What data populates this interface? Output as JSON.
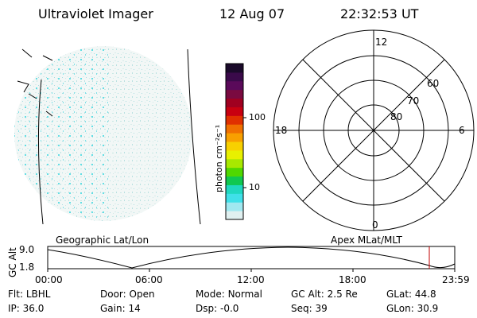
{
  "header": {
    "instrument": "Ultraviolet Imager",
    "date": "12 Aug 07",
    "time": "22:32:53 UT"
  },
  "colorbar": {
    "unit_label": "photon cm⁻²s⁻¹",
    "ticks": [
      "100",
      "10"
    ],
    "colors": [
      "#1a0a2a",
      "#3a0a4a",
      "#5a0a5a",
      "#7a0a40",
      "#a00020",
      "#c80010",
      "#e03000",
      "#f07000",
      "#f8a000",
      "#f8d000",
      "#e8f000",
      "#a8e800",
      "#50d800",
      "#10c850",
      "#20d8c0",
      "#40e0e8",
      "#a0e8f0",
      "#e0f0f0"
    ]
  },
  "polar": {
    "mlt_labels": {
      "top": "12",
      "bottom": "0",
      "left": "18",
      "right": "6"
    },
    "lat_labels": [
      "60",
      "70",
      "80"
    ]
  },
  "timeline": {
    "left_label": "Geographic Lat/Lon",
    "right_label": "Apex MLat/MLT",
    "axis_title": "GC Alt",
    "y_ticks": [
      "9.0",
      "1.8"
    ],
    "x_ticks": [
      "00:00",
      "06:00",
      "12:00",
      "18:00",
      "23:59"
    ],
    "marker_color": "#c00000"
  },
  "status": {
    "row1": [
      {
        "label": "Flt:",
        "value": "LBHL"
      },
      {
        "label": "Door:",
        "value": "Open"
      },
      {
        "label": "Mode:",
        "value": "Normal"
      },
      {
        "label": "GC Alt:",
        "value": "2.5 Re"
      },
      {
        "label": "GLat:",
        "value": "44.8"
      }
    ],
    "row2": [
      {
        "label": "IP:",
        "value": "36.0"
      },
      {
        "label": "Gain:",
        "value": "14"
      },
      {
        "label": "Dsp:",
        "value": "-0.0"
      },
      {
        "label": "Seq:",
        "value": "39"
      },
      {
        "label": "GLon:",
        "value": "30.9"
      }
    ]
  }
}
